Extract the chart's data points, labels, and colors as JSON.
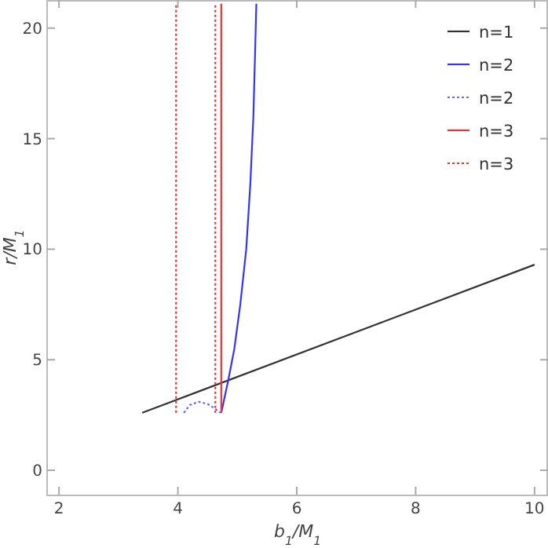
{
  "chart_data": {
    "type": "line",
    "xlabel": "b$_{1}$/M$_{1}$",
    "ylabel": "r/M$_{1}$",
    "xlim": [
      1.8,
      10.2
    ],
    "ylim": [
      -1.1,
      21.2
    ],
    "xticks": [
      2,
      4,
      6,
      8,
      10
    ],
    "yticks": [
      0,
      5,
      10,
      15,
      20
    ],
    "grid": false,
    "legend": "top right",
    "series": [
      {
        "name": "n=1",
        "color": "#333333",
        "line_style": "solid",
        "x": [
          3.4,
          10
        ],
        "values": [
          2.6,
          9.3
        ]
      },
      {
        "name": "n=2",
        "color": "#3333ff",
        "line_style": "solid",
        "x": [
          4.73,
          4.85,
          4.95,
          5.05,
          5.15,
          5.22,
          5.27,
          5.3,
          5.32
        ],
        "values": [
          2.6,
          4.1,
          5.5,
          7.5,
          10,
          13,
          16,
          19,
          21.1
        ]
      },
      {
        "name": "n=2",
        "color": "#6666ff",
        "line_style": "dotted",
        "x": [
          4.1,
          4.2,
          4.35,
          4.5,
          4.62,
          4.72
        ],
        "values": [
          2.6,
          2.95,
          3.1,
          3.0,
          2.8,
          2.6
        ]
      },
      {
        "name": "n=3",
        "color": "#ee3333",
        "line_style": "solid",
        "x": [
          4.73,
          4.73
        ],
        "values": [
          2.6,
          21.1
        ]
      },
      {
        "name": "n=3",
        "color": "#ee3333",
        "line_style": "dotted",
        "x": [
          3.97,
          3.97,
          4.3,
          4.63,
          4.63
        ],
        "values": [
          2.6,
          21.1,
          null,
          2.6,
          21.1
        ]
      }
    ]
  }
}
